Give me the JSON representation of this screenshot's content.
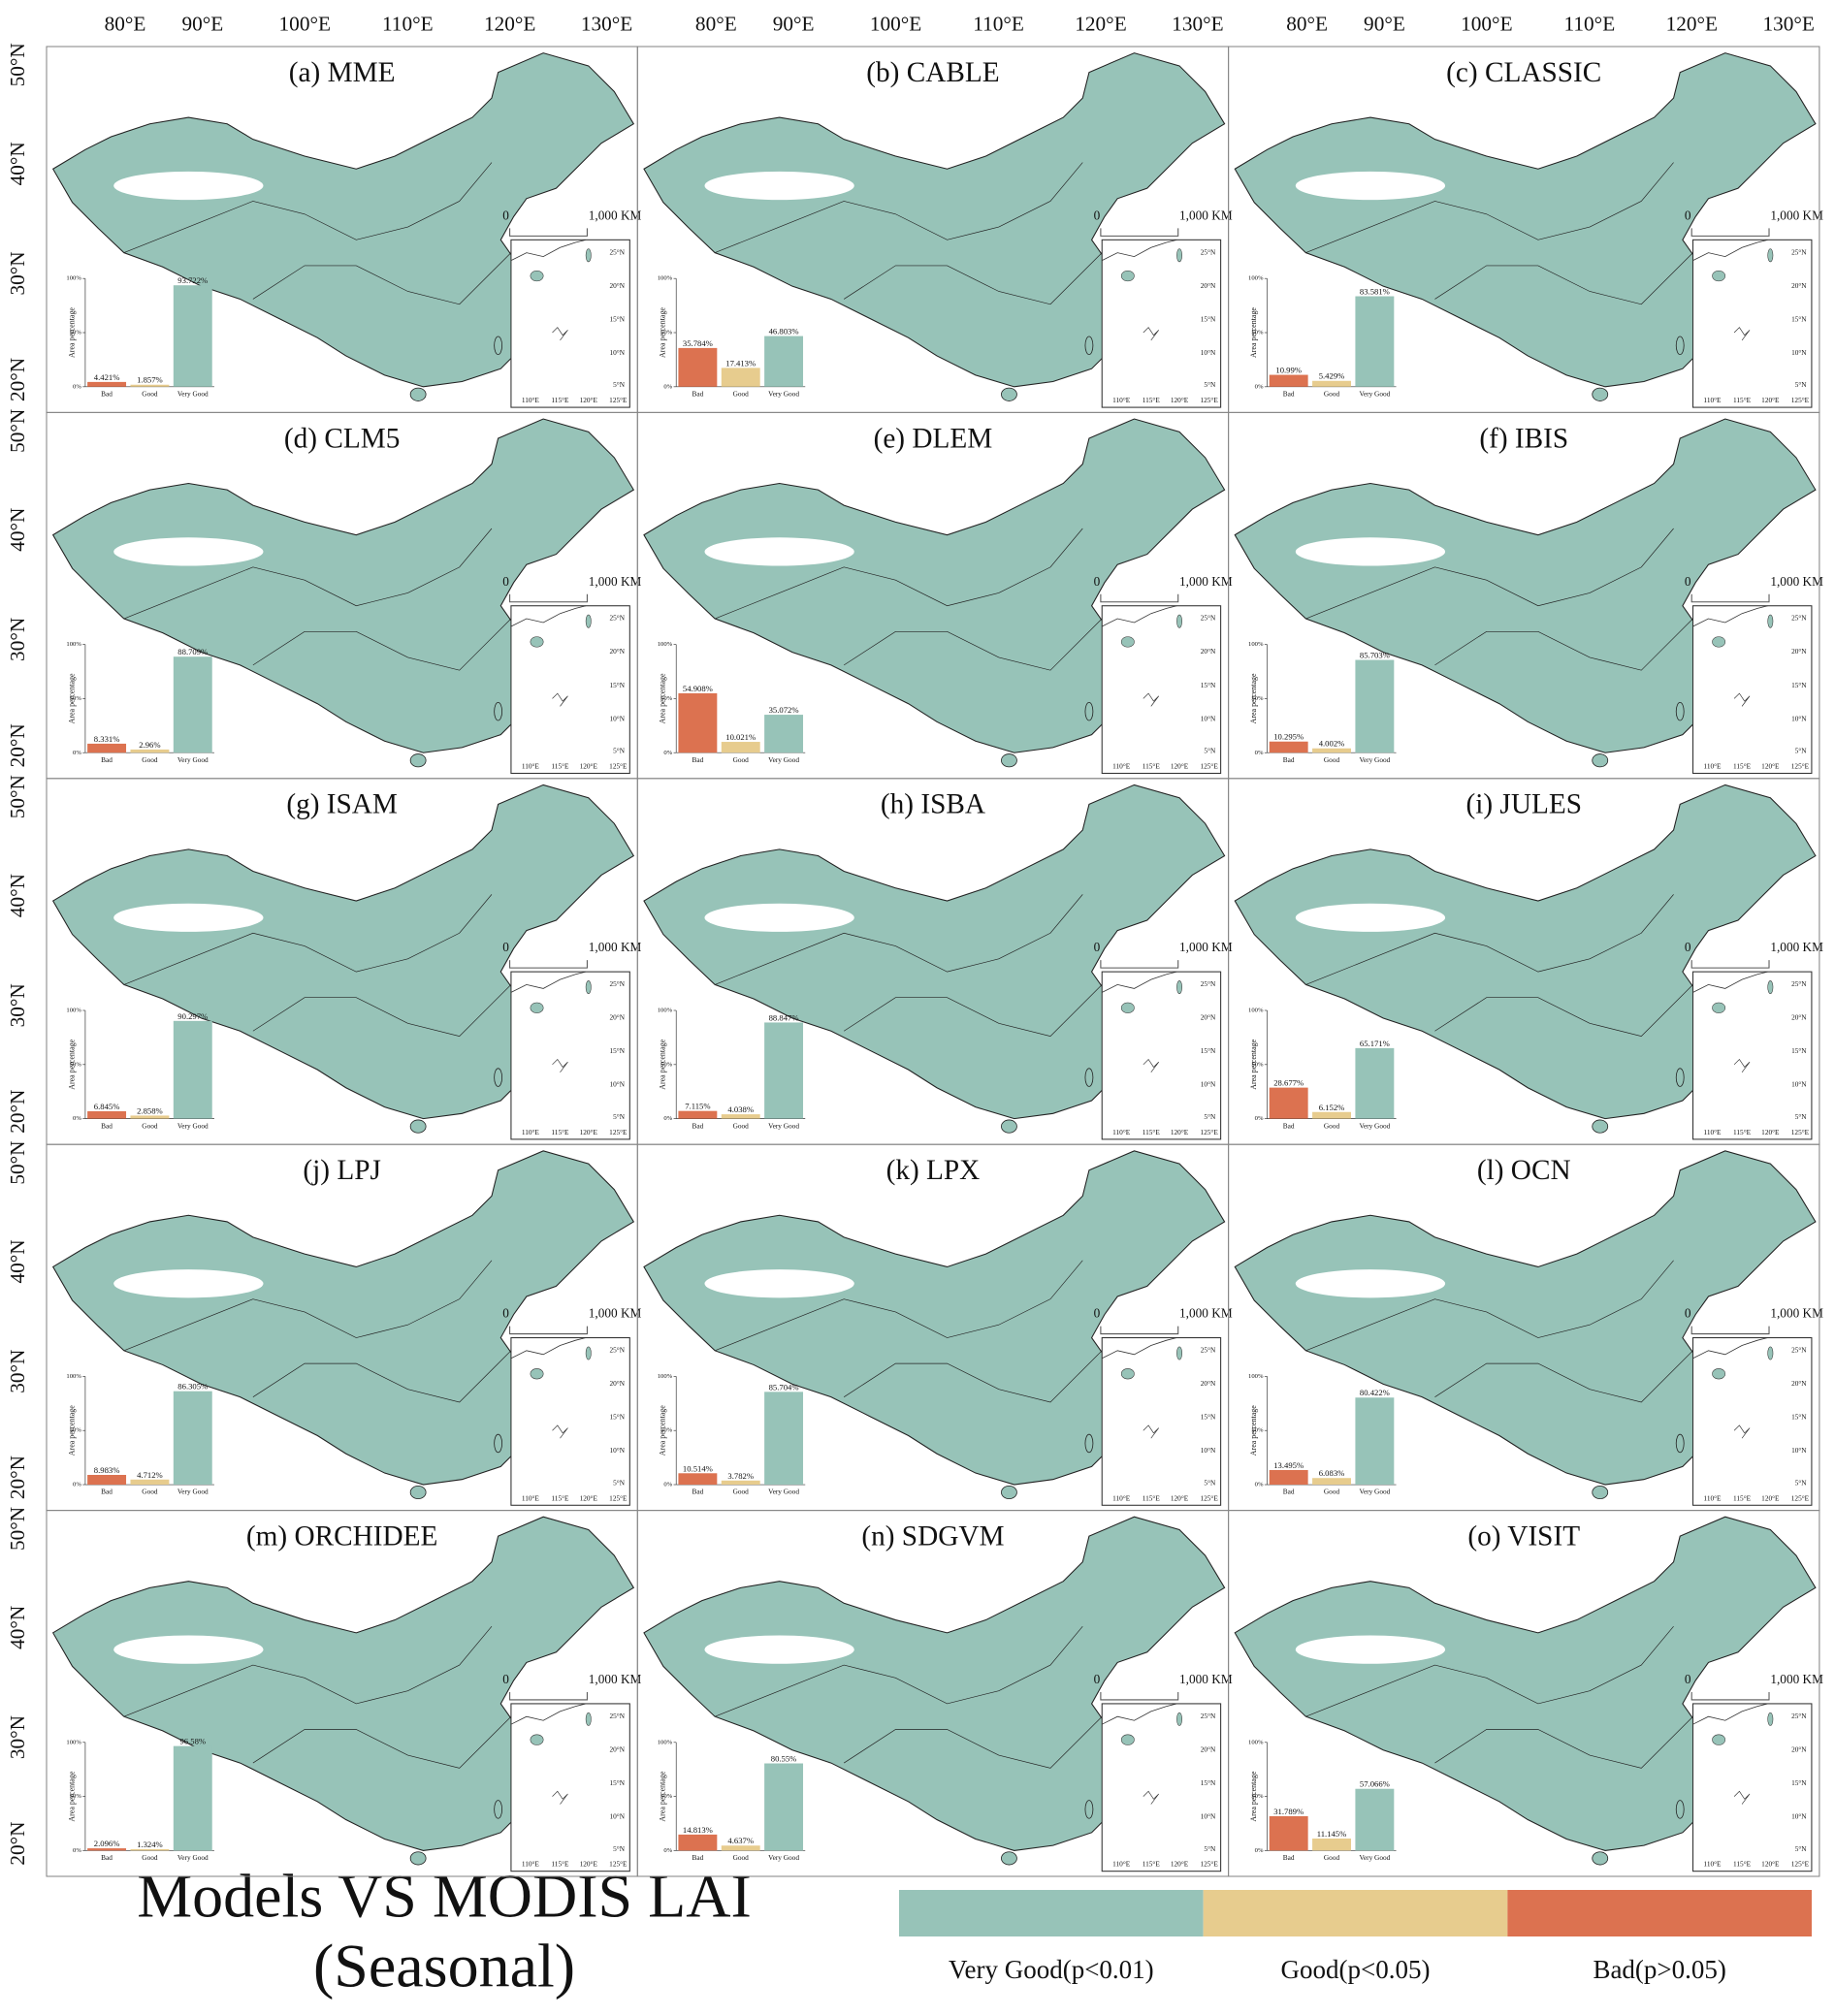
{
  "chart_data": [
    {
      "type": "bar",
      "title": "(a) MME",
      "y_label": "Area percentage",
      "categories": [
        "Bad",
        "Good",
        "Very Good"
      ],
      "colors": [
        "#dc7250",
        "#e7cc8e",
        "#97c3b8"
      ],
      "values": [
        4.421,
        1.857,
        93.722
      ],
      "value_labels": [
        "4.421%",
        "1.857%",
        "93.722%"
      ],
      "ylim": [
        0,
        100
      ],
      "yticks": [
        {
          "value": 0,
          "label": "0%"
        },
        {
          "value": 50,
          "label": "50%"
        },
        {
          "value": 100,
          "label": "100%"
        }
      ]
    },
    {
      "type": "bar",
      "title": "(b) CABLE",
      "y_label": "Area percentage",
      "categories": [
        "Bad",
        "Good",
        "Very Good"
      ],
      "colors": [
        "#dc7250",
        "#e7cc8e",
        "#97c3b8"
      ],
      "values": [
        35.784,
        17.413,
        46.803
      ],
      "value_labels": [
        "35.784%",
        "17.413%",
        "46.803%"
      ],
      "ylim": [
        0,
        100
      ],
      "yticks": [
        {
          "value": 0,
          "label": "0%"
        },
        {
          "value": 50,
          "label": "50%"
        },
        {
          "value": 100,
          "label": "100%"
        }
      ]
    },
    {
      "type": "bar",
      "title": "(c) CLASSIC",
      "y_label": "Area percentage",
      "categories": [
        "Bad",
        "Good",
        "Very Good"
      ],
      "colors": [
        "#dc7250",
        "#e7cc8e",
        "#97c3b8"
      ],
      "values": [
        10.99,
        5.429,
        83.581
      ],
      "value_labels": [
        "10.99%",
        "5.429%",
        "83.581%"
      ],
      "ylim": [
        0,
        100
      ],
      "yticks": [
        {
          "value": 0,
          "label": "0%"
        },
        {
          "value": 50,
          "label": "50%"
        },
        {
          "value": 100,
          "label": "100%"
        }
      ]
    },
    {
      "type": "bar",
      "title": "(d) CLM5",
      "y_label": "Area percentage",
      "categories": [
        "Bad",
        "Good",
        "Very Good"
      ],
      "colors": [
        "#dc7250",
        "#e7cc8e",
        "#97c3b8"
      ],
      "values": [
        8.331,
        2.96,
        88.709
      ],
      "value_labels": [
        "8.331%",
        "2.96%",
        "88.709%"
      ],
      "ylim": [
        0,
        100
      ],
      "yticks": [
        {
          "value": 0,
          "label": "0%"
        },
        {
          "value": 50,
          "label": "50%"
        },
        {
          "value": 100,
          "label": "100%"
        }
      ]
    },
    {
      "type": "bar",
      "title": "(e) DLEM",
      "y_label": "Area percentage",
      "categories": [
        "Bad",
        "Good",
        "Very Good"
      ],
      "colors": [
        "#dc7250",
        "#e7cc8e",
        "#97c3b8"
      ],
      "values": [
        54.908,
        10.021,
        35.072
      ],
      "value_labels": [
        "54.908%",
        "10.021%",
        "35.072%"
      ],
      "ylim": [
        0,
        100
      ],
      "yticks": [
        {
          "value": 0,
          "label": "0%"
        },
        {
          "value": 50,
          "label": "50%"
        },
        {
          "value": 100,
          "label": "100%"
        }
      ]
    },
    {
      "type": "bar",
      "title": "(f) IBIS",
      "y_label": "Area percentage",
      "categories": [
        "Bad",
        "Good",
        "Very Good"
      ],
      "colors": [
        "#dc7250",
        "#e7cc8e",
        "#97c3b8"
      ],
      "values": [
        10.295,
        4.002,
        85.703
      ],
      "value_labels": [
        "10.295%",
        "4.002%",
        "85.703%"
      ],
      "ylim": [
        0,
        100
      ],
      "yticks": [
        {
          "value": 0,
          "label": "0%"
        },
        {
          "value": 50,
          "label": "50%"
        },
        {
          "value": 100,
          "label": "100%"
        }
      ]
    },
    {
      "type": "bar",
      "title": "(g) ISAM",
      "y_label": "Area percentage",
      "categories": [
        "Bad",
        "Good",
        "Very Good"
      ],
      "colors": [
        "#dc7250",
        "#e7cc8e",
        "#97c3b8"
      ],
      "values": [
        6.845,
        2.858,
        90.297
      ],
      "value_labels": [
        "6.845%",
        "2.858%",
        "90.297%"
      ],
      "ylim": [
        0,
        100
      ],
      "yticks": [
        {
          "value": 0,
          "label": "0%"
        },
        {
          "value": 50,
          "label": "50%"
        },
        {
          "value": 100,
          "label": "100%"
        }
      ]
    },
    {
      "type": "bar",
      "title": "(h) ISBA",
      "y_label": "Area percentage",
      "categories": [
        "Bad",
        "Good",
        "Very Good"
      ],
      "colors": [
        "#dc7250",
        "#e7cc8e",
        "#97c3b8"
      ],
      "values": [
        7.115,
        4.038,
        88.847
      ],
      "value_labels": [
        "7.115%",
        "4.038%",
        "88.847%"
      ],
      "ylim": [
        0,
        100
      ],
      "yticks": [
        {
          "value": 0,
          "label": "0%"
        },
        {
          "value": 50,
          "label": "50%"
        },
        {
          "value": 100,
          "label": "100%"
        }
      ]
    },
    {
      "type": "bar",
      "title": "(i) JULES",
      "y_label": "Area percentage",
      "categories": [
        "Bad",
        "Good",
        "Very Good"
      ],
      "colors": [
        "#dc7250",
        "#e7cc8e",
        "#97c3b8"
      ],
      "values": [
        28.677,
        6.152,
        65.171
      ],
      "value_labels": [
        "28.677%",
        "6.152%",
        "65.171%"
      ],
      "ylim": [
        0,
        100
      ],
      "yticks": [
        {
          "value": 0,
          "label": "0%"
        },
        {
          "value": 50,
          "label": "50%"
        },
        {
          "value": 100,
          "label": "100%"
        }
      ]
    },
    {
      "type": "bar",
      "title": "(j) LPJ",
      "y_label": "Area percentage",
      "categories": [
        "Bad",
        "Good",
        "Very Good"
      ],
      "colors": [
        "#dc7250",
        "#e7cc8e",
        "#97c3b8"
      ],
      "values": [
        8.983,
        4.712,
        86.305
      ],
      "value_labels": [
        "8.983%",
        "4.712%",
        "86.305%"
      ],
      "ylim": [
        0,
        100
      ],
      "yticks": [
        {
          "value": 0,
          "label": "0%"
        },
        {
          "value": 50,
          "label": "50%"
        },
        {
          "value": 100,
          "label": "100%"
        }
      ]
    },
    {
      "type": "bar",
      "title": "(k) LPX",
      "y_label": "Area percentage",
      "categories": [
        "Bad",
        "Good",
        "Very Good"
      ],
      "colors": [
        "#dc7250",
        "#e7cc8e",
        "#97c3b8"
      ],
      "values": [
        10.514,
        3.782,
        85.704
      ],
      "value_labels": [
        "10.514%",
        "3.782%",
        "85.704%"
      ],
      "ylim": [
        0,
        100
      ],
      "yticks": [
        {
          "value": 0,
          "label": "0%"
        },
        {
          "value": 50,
          "label": "50%"
        },
        {
          "value": 100,
          "label": "100%"
        }
      ]
    },
    {
      "type": "bar",
      "title": "(l) OCN",
      "y_label": "Area percentage",
      "categories": [
        "Bad",
        "Good",
        "Very Good"
      ],
      "colors": [
        "#dc7250",
        "#e7cc8e",
        "#97c3b8"
      ],
      "values": [
        13.495,
        6.083,
        80.422
      ],
      "value_labels": [
        "13.495%",
        "6.083%",
        "80.422%"
      ],
      "ylim": [
        0,
        100
      ],
      "yticks": [
        {
          "value": 0,
          "label": "0%"
        },
        {
          "value": 50,
          "label": "50%"
        },
        {
          "value": 100,
          "label": "100%"
        }
      ]
    },
    {
      "type": "bar",
      "title": "(m) ORCHIDEE",
      "y_label": "Area percentage",
      "categories": [
        "Bad",
        "Good",
        "Very Good"
      ],
      "colors": [
        "#dc7250",
        "#e7cc8e",
        "#97c3b8"
      ],
      "values": [
        2.096,
        1.324,
        96.58
      ],
      "value_labels": [
        "2.096%",
        "1.324%",
        "96.58%"
      ],
      "ylim": [
        0,
        100
      ],
      "yticks": [
        {
          "value": 0,
          "label": "0%"
        },
        {
          "value": 50,
          "label": "50%"
        },
        {
          "value": 100,
          "label": "100%"
        }
      ]
    },
    {
      "type": "bar",
      "title": "(n) SDGVM",
      "y_label": "Area percentage",
      "categories": [
        "Bad",
        "Good",
        "Very Good"
      ],
      "colors": [
        "#dc7250",
        "#e7cc8e",
        "#97c3b8"
      ],
      "values": [
        14.813,
        4.637,
        80.55
      ],
      "value_labels": [
        "14.813%",
        "4.637%",
        "80.55%"
      ],
      "ylim": [
        0,
        100
      ],
      "yticks": [
        {
          "value": 0,
          "label": "0%"
        },
        {
          "value": 50,
          "label": "50%"
        },
        {
          "value": 100,
          "label": "100%"
        }
      ]
    },
    {
      "type": "bar",
      "title": "(o) VISIT",
      "y_label": "Area percentage",
      "categories": [
        "Bad",
        "Good",
        "Very Good"
      ],
      "colors": [
        "#dc7250",
        "#e7cc8e",
        "#97c3b8"
      ],
      "values": [
        31.789,
        11.145,
        57.066
      ],
      "value_labels": [
        "31.789%",
        "11.145%",
        "57.066%"
      ],
      "ylim": [
        0,
        100
      ],
      "yticks": [
        {
          "value": 0,
          "label": "0%"
        },
        {
          "value": 50,
          "label": "50%"
        },
        {
          "value": 100,
          "label": "100%"
        }
      ]
    }
  ],
  "map": {
    "lon_labels": [
      "80°E",
      "90°E",
      "100°E",
      "110°E",
      "120°E",
      "130°E"
    ],
    "lat_labels": [
      "50°N",
      "40°N",
      "30°N",
      "20°N"
    ],
    "scale_labels": [
      "0",
      "1,000 KM"
    ],
    "inset_lon_labels": [
      "110°E",
      "115°E",
      "120°E",
      "125°E"
    ],
    "inset_lat_labels": [
      "25°N",
      "20°N",
      "15°N",
      "10°N",
      "5°N"
    ]
  },
  "title": [
    "Models VS MODIS LAI",
    "(Seasonal)"
  ],
  "legend": [
    {
      "label": "Very Good(p<0.01)",
      "color": "#97c3b8"
    },
    {
      "label": "Good(p<0.05)",
      "color": "#e7cc8e"
    },
    {
      "label": "Bad(p>0.05)",
      "color": "#dc7250"
    }
  ]
}
